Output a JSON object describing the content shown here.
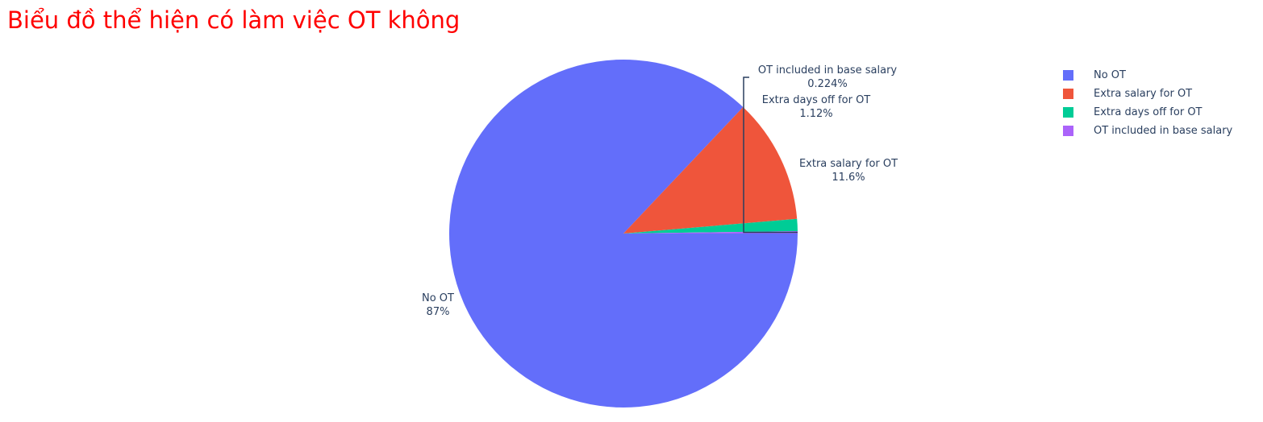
{
  "chart_data": {
    "type": "pie",
    "title": "Biểu đồ thể hiện có làm việc OT không",
    "legend_position": "top-right",
    "slices": [
      {
        "label": "No OT",
        "value": 87.0,
        "display": "87%",
        "color": "#636efa"
      },
      {
        "label": "Extra salary for OT",
        "value": 11.6,
        "display": "11.6%",
        "color": "#ef553b"
      },
      {
        "label": "Extra days off for OT",
        "value": 1.12,
        "display": "1.12%",
        "color": "#00cc96"
      },
      {
        "label": "OT included in base salary",
        "value": 0.224,
        "display": "0.224%",
        "color": "#ab63fa"
      }
    ]
  }
}
